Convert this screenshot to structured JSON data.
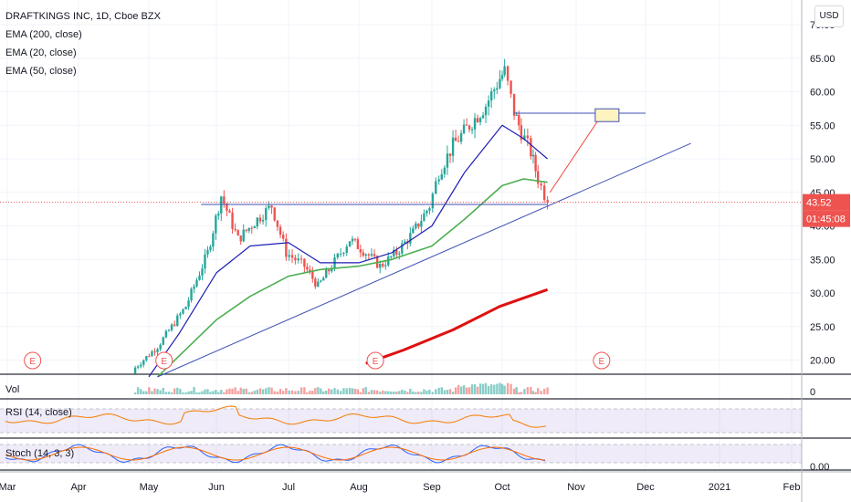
{
  "header": {
    "symbol_line": "DRAFTKINGS INC, 1D, Cboe BZX",
    "indicators": [
      "EMA (200, close)",
      "EMA (20, close)",
      "EMA (50, close)"
    ],
    "currency": "USD"
  },
  "colors": {
    "up": "#26a69a",
    "down": "#ef5350",
    "ema20": "#1e1eb4",
    "ema50": "#4caf50",
    "ema200": "#e01010",
    "trendline": "#3f51b5",
    "rsi": "#f57c00",
    "stoch_k": "#2962ff",
    "stoch_d": "#ff6d00",
    "price_badge": "#ef5350"
  },
  "subpanes": {
    "vol_label": "Vol",
    "rsi_label": "RSI (14, close)",
    "stoch_label": "Stoch (14, 3, 3)",
    "vol_axis_label": "0",
    "stoch_axis_label": "0.00"
  },
  "price_badges": {
    "last_price": "43.52",
    "countdown": "01:45:08"
  },
  "earnings_marker": "E",
  "chart_data": {
    "type": "candlestick",
    "title": "DRAFTKINGS INC, 1D, Cboe BZX",
    "ylabel": "USD",
    "ylim": [
      16,
      72
    ],
    "y_ticks": [
      "20.00",
      "25.00",
      "30.00",
      "35.00",
      "40.00",
      "45.00",
      "50.00",
      "55.00",
      "60.00",
      "65.00",
      "70.00"
    ],
    "x_ticks": [
      "Mar",
      "Apr",
      "May",
      "Jun",
      "Jul",
      "Aug",
      "Sep",
      "Oct",
      "Nov",
      "Dec",
      "2021",
      "Feb"
    ],
    "last_price": 43.52,
    "ohlc_anchors": [
      {
        "date": "Apr 24",
        "close": 18.5
      },
      {
        "date": "May 5",
        "close": 22
      },
      {
        "date": "May 18",
        "close": 28
      },
      {
        "date": "May 28",
        "close": 36
      },
      {
        "date": "Jun 3",
        "close": 44.5
      },
      {
        "date": "Jun 10",
        "close": 38
      },
      {
        "date": "Jun 18",
        "close": 41
      },
      {
        "date": "Jun 24",
        "close": 43
      },
      {
        "date": "Jun 30",
        "close": 36
      },
      {
        "date": "Jul 8",
        "close": 34
      },
      {
        "date": "Jul 14",
        "close": 31
      },
      {
        "date": "Jul 20",
        "close": 34
      },
      {
        "date": "Jul 28",
        "close": 38
      },
      {
        "date": "Aug 4",
        "close": 36
      },
      {
        "date": "Aug 10",
        "close": 34
      },
      {
        "date": "Aug 17",
        "close": 36
      },
      {
        "date": "Aug 24",
        "close": 39
      },
      {
        "date": "Aug 31",
        "close": 43
      },
      {
        "date": "Sep 4",
        "close": 48
      },
      {
        "date": "Sep 10",
        "close": 52
      },
      {
        "date": "Sep 17",
        "close": 55
      },
      {
        "date": "Sep 24",
        "close": 58
      },
      {
        "date": "Sep 30",
        "close": 62
      },
      {
        "date": "Oct 2",
        "close": 63
      },
      {
        "date": "Oct 6",
        "close": 57
      },
      {
        "date": "Oct 9",
        "close": 54
      },
      {
        "date": "Oct 13",
        "close": 51
      },
      {
        "date": "Oct 16",
        "close": 47
      },
      {
        "date": "Oct 20",
        "close": 43.52
      }
    ],
    "series": [
      {
        "name": "EMA (20, close)",
        "points": [
          [
            "May 1",
            17.5
          ],
          [
            "May 15",
            24
          ],
          [
            "Jun 1",
            33
          ],
          [
            "Jun 15",
            37
          ],
          [
            "Jul 1",
            37.5
          ],
          [
            "Jul 15",
            34.5
          ],
          [
            "Aug 1",
            34.5
          ],
          [
            "Aug 15",
            36
          ],
          [
            "Sep 1",
            40
          ],
          [
            "Sep 15",
            48
          ],
          [
            "Oct 1",
            55
          ],
          [
            "Oct 10",
            53
          ],
          [
            "Oct 20",
            50
          ]
        ]
      },
      {
        "name": "EMA (50, close)",
        "points": [
          [
            "May 5",
            17.5
          ],
          [
            "Jun 1",
            26
          ],
          [
            "Jun 15",
            29.5
          ],
          [
            "Jul 1",
            32.5
          ],
          [
            "Jul 15",
            33.5
          ],
          [
            "Aug 1",
            34
          ],
          [
            "Aug 15",
            35
          ],
          [
            "Sep 1",
            37
          ],
          [
            "Sep 15",
            41
          ],
          [
            "Oct 1",
            46
          ],
          [
            "Oct 10",
            47
          ],
          [
            "Oct 20",
            46.5
          ]
        ]
      },
      {
        "name": "EMA (200, close)",
        "points": [
          [
            "Aug 4",
            19.5
          ],
          [
            "Aug 20",
            21.5
          ],
          [
            "Sep 10",
            24.5
          ],
          [
            "Sep 30",
            28
          ],
          [
            "Oct 20",
            30.5
          ]
        ]
      }
    ],
    "annotations": [
      {
        "type": "horizontal",
        "price": 43.2,
        "from": "May 25",
        "to": "Oct 20"
      },
      {
        "type": "horizontal",
        "price": 56.8,
        "from": "Oct 6",
        "to": "Dec 1"
      },
      {
        "type": "trendline",
        "from": [
          "May 5",
          17.5
        ],
        "to": [
          "Dec 20",
          52.3
        ]
      },
      {
        "type": "arrow",
        "from": [
          "Oct 21",
          45
        ],
        "to": [
          "Nov 12",
          56.5
        ]
      },
      {
        "type": "earnings",
        "dates": [
          "Mar 12",
          "May 8",
          "Aug 8",
          "Nov 12"
        ]
      }
    ]
  }
}
